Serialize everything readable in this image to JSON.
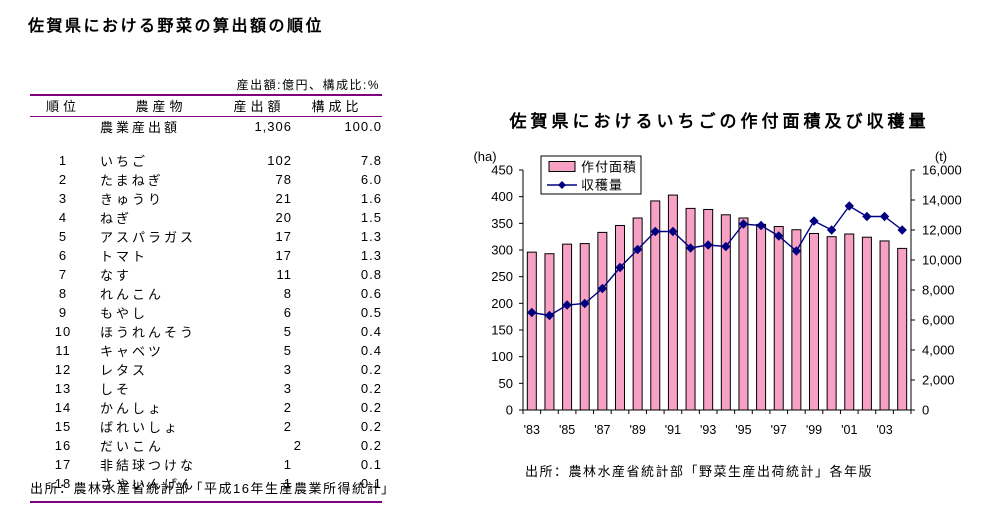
{
  "doc": {
    "title": "佐賀県における野菜の算出額の順位",
    "source": "出所：農林水産省統計部「平成16年生産農業所得統計」"
  },
  "table": {
    "note": "産出額:億円、構成比:%",
    "headers": [
      "順位",
      "農産物",
      "産出額",
      "構成比"
    ],
    "total_row": {
      "rank": "",
      "product": "農業産出額",
      "value": "1,306",
      "share": "100.0"
    },
    "rows": [
      {
        "rank": "1",
        "product": "いちご",
        "value": "102",
        "share": "7.8"
      },
      {
        "rank": "2",
        "product": "たまねぎ",
        "value": "78",
        "share": "6.0"
      },
      {
        "rank": "3",
        "product": "きゅうり",
        "value": "21",
        "share": "1.6"
      },
      {
        "rank": "4",
        "product": "ねぎ",
        "value": "20",
        "share": "1.5"
      },
      {
        "rank": "5",
        "product": "アスパラガス",
        "value": "17",
        "share": "1.3"
      },
      {
        "rank": "6",
        "product": "トマト",
        "value": "17",
        "share": "1.3"
      },
      {
        "rank": "7",
        "product": "なす",
        "value": "11",
        "share": "0.8"
      },
      {
        "rank": "8",
        "product": "れんこん",
        "value": "8",
        "share": "0.6"
      },
      {
        "rank": "9",
        "product": "もやし",
        "value": "6",
        "share": "0.5"
      },
      {
        "rank": "10",
        "product": "ほうれんそう",
        "value": "5",
        "share": "0.4"
      },
      {
        "rank": "11",
        "product": "キャベツ",
        "value": "5",
        "share": "0.4"
      },
      {
        "rank": "12",
        "product": "レタス",
        "value": "3",
        "share": "0.2"
      },
      {
        "rank": "13",
        "product": "しそ",
        "value": "3",
        "share": "0.2"
      },
      {
        "rank": "14",
        "product": "かんしょ",
        "value": "2",
        "share": "0.2"
      },
      {
        "rank": "15",
        "product": "ばれいしょ",
        "value": "2",
        "share": "0.2"
      },
      {
        "rank": "16",
        "product": "だいこん",
        "value": "2",
        "share": "0.2",
        "value_shift": true
      },
      {
        "rank": "17",
        "product": "非結球つけな",
        "value": "1",
        "share": "0.1"
      },
      {
        "rank": "18",
        "product": "さやいんげん",
        "value": "1",
        "share": "0.1"
      }
    ],
    "rule_color": "#800080"
  },
  "chart": {
    "title": "佐賀県におけるいちごの作付面積及び収穫量",
    "source": "出所：農林水産省統計部「野菜生産出荷統計」各年版"
  },
  "chart_data": {
    "type": "bar",
    "combo": "bar+line",
    "title": "佐賀県におけるいちごの作付面積及び収穫量",
    "x": [
      1983,
      1984,
      1985,
      1986,
      1987,
      1988,
      1989,
      1990,
      1991,
      1992,
      1993,
      1994,
      1995,
      1996,
      1997,
      1998,
      1999,
      2000,
      2001,
      2002,
      2003,
      2004
    ],
    "x_tick_labels": [
      "'83",
      "'85",
      "'87",
      "'89",
      "'91",
      "'93",
      "'95",
      "'97",
      "'99",
      "'01",
      "'03"
    ],
    "x_label_every": 2,
    "series": [
      {
        "name": "作付面積",
        "type": "bar",
        "axis": "left",
        "unit": "ha",
        "color": "#F7A1C4",
        "border": "#000000",
        "values": [
          296,
          293,
          311,
          312,
          333,
          346,
          360,
          392,
          403,
          378,
          376,
          366,
          360,
          348,
          344,
          338,
          331,
          325,
          330,
          324,
          317,
          303
        ]
      },
      {
        "name": "収穫量",
        "type": "line",
        "axis": "right",
        "unit": "t",
        "color": "#000080",
        "marker": "diamond",
        "values": [
          6500,
          6300,
          7000,
          7100,
          8100,
          9500,
          10700,
          11900,
          11900,
          10800,
          11000,
          10900,
          12400,
          12300,
          11600,
          10600,
          12600,
          12000,
          13600,
          12900,
          12900,
          12000
        ]
      }
    ],
    "left_axis": {
      "label": "(ha)",
      "min": 0,
      "max": 450,
      "tick_step": 50,
      "ticks": [
        450,
        400,
        350,
        300,
        250,
        200,
        150,
        100,
        50,
        0
      ]
    },
    "right_axis": {
      "label": "(t)",
      "min": 0,
      "max": 16000,
      "tick_step": 2000,
      "ticks": [
        "16,000",
        "14,000",
        "12,000",
        "10,000",
        "8,000",
        "6,000",
        "4,000",
        "2,000",
        "0"
      ]
    },
    "grid": false,
    "legend_position": "inside-top-left",
    "plot_bg": "#ffffff"
  }
}
